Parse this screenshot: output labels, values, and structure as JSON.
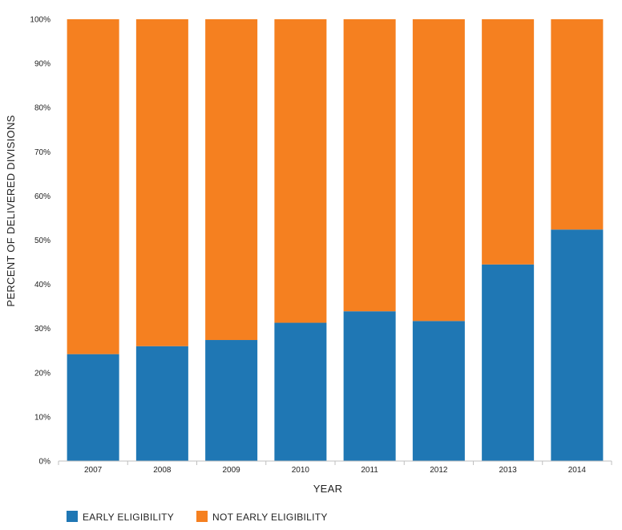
{
  "chart_data": {
    "type": "bar",
    "stacked": true,
    "categories": [
      "2007",
      "2008",
      "2009",
      "2010",
      "2011",
      "2012",
      "2013",
      "2014"
    ],
    "series": [
      {
        "name": "EARLY ELIGIBILITY",
        "color": "#1f77b4",
        "values": [
          24.2,
          26.0,
          27.4,
          31.3,
          33.9,
          31.7,
          44.5,
          52.4
        ]
      },
      {
        "name": "NOT EARLY ELIGIBILITY",
        "color": "#f58020",
        "values": [
          75.8,
          74.0,
          72.6,
          68.7,
          66.1,
          68.3,
          55.5,
          47.6
        ]
      }
    ],
    "title": "",
    "xlabel": "YEAR",
    "ylabel": "PERCENT OF DELIVERED DIVISIONS",
    "ylim": [
      0,
      100
    ],
    "yticks": [
      "0%",
      "10%",
      "20%",
      "30%",
      "40%",
      "50%",
      "60%",
      "70%",
      "80%",
      "90%",
      "100%"
    ],
    "grid": false,
    "legend_position": "bottom-left"
  }
}
